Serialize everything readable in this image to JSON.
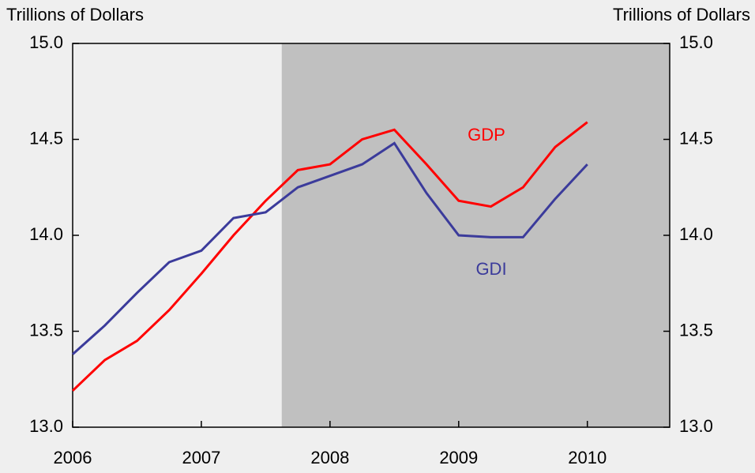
{
  "chart_data": {
    "type": "line",
    "y_label": "Trillions of Dollars",
    "y2_label": "Trillions of Dollars",
    "x": [
      2006,
      2006.25,
      2006.5,
      2006.75,
      2007,
      2007.25,
      2007.5,
      2007.75,
      2008,
      2008.25,
      2008.5,
      2008.75,
      2009,
      2009.25,
      2009.5,
      2009.75,
      2010
    ],
    "series": [
      {
        "name": "GDP",
        "color": "#ff0000",
        "values": [
          13.19,
          13.35,
          13.45,
          13.61,
          13.8,
          14.0,
          14.18,
          14.34,
          14.37,
          14.5,
          14.55,
          14.37,
          14.18,
          14.15,
          14.25,
          14.46,
          14.59
        ]
      },
      {
        "name": "GDI",
        "color": "#3b3b9b",
        "values": [
          13.38,
          13.53,
          13.7,
          13.86,
          13.92,
          14.09,
          14.12,
          14.25,
          14.31,
          14.37,
          14.48,
          14.22,
          14.0,
          13.99,
          13.99,
          14.19,
          14.37
        ]
      }
    ],
    "shaded_x": [
      2007.625,
      2010.64
    ],
    "shade_color": "#c0c0c0",
    "xlim": [
      2006,
      2010.64
    ],
    "xticks": [
      2006,
      2007,
      2008,
      2009,
      2010
    ],
    "ylim": [
      13.0,
      15.0
    ],
    "yticks": [
      {
        "value": 13.0,
        "label": "13.0"
      },
      {
        "value": 13.5,
        "label": "13.5"
      },
      {
        "value": 14.0,
        "label": "14.0"
      },
      {
        "value": 14.5,
        "label": "14.5"
      },
      {
        "value": 15.0,
        "label": "15.0"
      }
    ],
    "y2lim": [
      13.0,
      15.0
    ],
    "y2ticks": [
      {
        "value": 13.0,
        "label": "13.0"
      },
      {
        "value": 13.5,
        "label": "13.5"
      },
      {
        "value": 14.0,
        "label": "14.0"
      },
      {
        "value": 14.5,
        "label": "14.5"
      },
      {
        "value": 15.0,
        "label": "15.0"
      }
    ]
  }
}
